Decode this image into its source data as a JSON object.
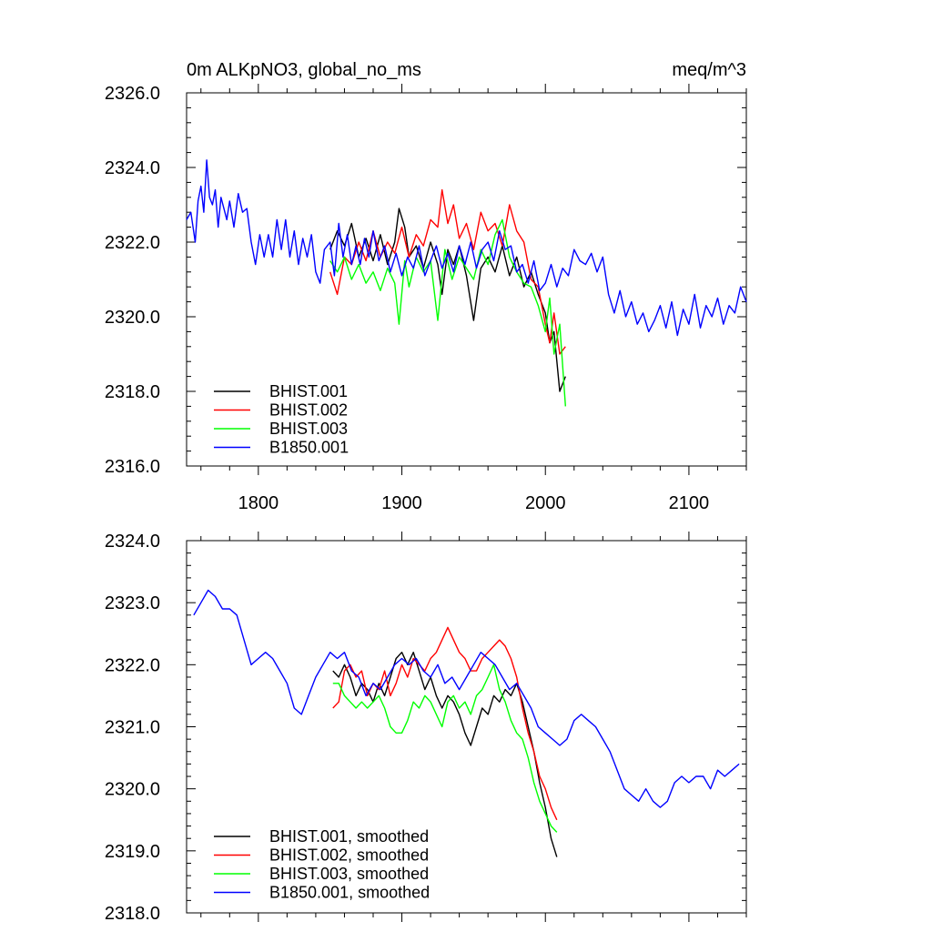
{
  "chart_data": [
    {
      "type": "line",
      "title_left": "0m ALKpNO3, global_no_ms",
      "title_right": "meq/m^3",
      "xlim": [
        1750,
        2140
      ],
      "ylim": [
        2316,
        2326
      ],
      "yticks": [
        2316.0,
        2318.0,
        2320.0,
        2322.0,
        2324.0,
        2326.0
      ],
      "ytick_labels": [
        "2316.0",
        "2318.0",
        "2320.0",
        "2322.0",
        "2324.0",
        "2326.0"
      ],
      "xticks": [
        1800,
        1900,
        2000,
        2100
      ],
      "xtick_labels": [
        "1800",
        "1900",
        "2000",
        "2100"
      ],
      "show_xtick_labels": true,
      "legend_position": "bottom-left",
      "series": [
        {
          "name": "BHIST.001",
          "color": "#000000",
          "x": [
            1850,
            1855,
            1860,
            1865,
            1870,
            1875,
            1880,
            1885,
            1890,
            1895,
            1898,
            1902,
            1905,
            1910,
            1915,
            1920,
            1925,
            1928,
            1932,
            1936,
            1940,
            1945,
            1950,
            1955,
            1960,
            1965,
            1970,
            1975,
            1980,
            1985,
            1990,
            1995,
            2000,
            2003,
            2006,
            2010,
            2014
          ],
          "y": [
            2321.8,
            2322.3,
            2321.9,
            2322.5,
            2321.6,
            2322.1,
            2321.5,
            2322.2,
            2321.4,
            2322.0,
            2322.9,
            2322.4,
            2321.6,
            2321.9,
            2321.3,
            2322.0,
            2321.4,
            2320.6,
            2321.8,
            2321.4,
            2321.9,
            2321.1,
            2319.9,
            2321.3,
            2321.6,
            2321.2,
            2321.9,
            2321.1,
            2321.6,
            2320.8,
            2321.2,
            2320.6,
            2320.1,
            2319.3,
            2319.6,
            2318.0,
            2318.4
          ]
        },
        {
          "name": "BHIST.002",
          "color": "#ff0000",
          "x": [
            1850,
            1855,
            1860,
            1865,
            1870,
            1875,
            1880,
            1885,
            1890,
            1895,
            1900,
            1905,
            1910,
            1915,
            1920,
            1925,
            1928,
            1932,
            1936,
            1940,
            1945,
            1950,
            1955,
            1960,
            1965,
            1970,
            1975,
            1980,
            1985,
            1990,
            1995,
            2000,
            2003,
            2006,
            2010,
            2014
          ],
          "y": [
            2321.2,
            2320.6,
            2321.6,
            2321.4,
            2322.0,
            2321.5,
            2322.3,
            2321.6,
            2322.0,
            2321.7,
            2322.4,
            2321.6,
            2322.2,
            2321.9,
            2322.6,
            2322.4,
            2323.4,
            2322.5,
            2323.0,
            2322.1,
            2322.5,
            2321.8,
            2322.8,
            2322.3,
            2322.5,
            2321.9,
            2323.0,
            2322.3,
            2322.0,
            2321.0,
            2320.8,
            2319.8,
            2319.3,
            2320.1,
            2319.0,
            2319.2
          ]
        },
        {
          "name": "BHIST.003",
          "color": "#00ff00",
          "x": [
            1850,
            1855,
            1860,
            1865,
            1870,
            1875,
            1880,
            1885,
            1890,
            1895,
            1898,
            1902,
            1905,
            1910,
            1915,
            1920,
            1925,
            1930,
            1935,
            1940,
            1945,
            1950,
            1955,
            1960,
            1965,
            1970,
            1975,
            1980,
            1985,
            1990,
            1995,
            2000,
            2003,
            2006,
            2010,
            2014
          ],
          "y": [
            2321.5,
            2321.2,
            2321.6,
            2321.0,
            2321.4,
            2320.9,
            2321.2,
            2320.7,
            2321.3,
            2320.9,
            2319.8,
            2321.5,
            2320.8,
            2321.6,
            2321.2,
            2321.5,
            2319.9,
            2321.8,
            2321.0,
            2321.6,
            2321.3,
            2321.0,
            2321.8,
            2321.4,
            2322.2,
            2322.6,
            2321.6,
            2321.2,
            2320.9,
            2320.8,
            2320.3,
            2319.6,
            2320.5,
            2319.0,
            2319.8,
            2317.6
          ]
        },
        {
          "name": "B1850.001",
          "color": "#0000ff",
          "x": [
            1750,
            1753,
            1756,
            1758,
            1760,
            1762,
            1764,
            1766,
            1768,
            1770,
            1772,
            1774,
            1776,
            1778,
            1780,
            1783,
            1786,
            1789,
            1792,
            1795,
            1798,
            1801,
            1804,
            1807,
            1810,
            1813,
            1816,
            1819,
            1822,
            1825,
            1828,
            1831,
            1834,
            1837,
            1840,
            1843,
            1846,
            1850,
            1853,
            1856,
            1859,
            1862,
            1865,
            1868,
            1871,
            1874,
            1877,
            1880,
            1884,
            1888,
            1892,
            1896,
            1900,
            1904,
            1908,
            1912,
            1916,
            1920,
            1924,
            1928,
            1932,
            1936,
            1940,
            1944,
            1948,
            1952,
            1956,
            1960,
            1964,
            1968,
            1972,
            1976,
            1980,
            1984,
            1988,
            1992,
            1996,
            2000,
            2004,
            2008,
            2012,
            2016,
            2020,
            2024,
            2028,
            2032,
            2036,
            2040,
            2044,
            2048,
            2052,
            2056,
            2060,
            2064,
            2068,
            2072,
            2076,
            2080,
            2084,
            2088,
            2092,
            2096,
            2100,
            2104,
            2108,
            2112,
            2116,
            2120,
            2124,
            2128,
            2132,
            2136,
            2140
          ],
          "y": [
            2322.6,
            2322.8,
            2322.0,
            2323.1,
            2323.5,
            2322.8,
            2324.2,
            2323.2,
            2323.0,
            2323.4,
            2322.4,
            2323.2,
            2322.9,
            2322.6,
            2323.1,
            2322.4,
            2323.3,
            2322.8,
            2322.9,
            2322.0,
            2321.4,
            2322.2,
            2321.6,
            2322.2,
            2321.6,
            2322.6,
            2321.8,
            2322.6,
            2321.6,
            2322.3,
            2321.4,
            2322.1,
            2321.6,
            2322.2,
            2321.2,
            2320.9,
            2321.8,
            2322.0,
            2321.1,
            2322.5,
            2321.6,
            2322.2,
            2321.4,
            2321.9,
            2321.4,
            2322.1,
            2321.6,
            2322.3,
            2321.5,
            2321.9,
            2321.2,
            2321.7,
            2321.1,
            2321.6,
            2321.3,
            2321.9,
            2321.1,
            2321.5,
            2321.9,
            2321.3,
            2321.7,
            2321.2,
            2321.9,
            2321.4,
            2322.0,
            2321.3,
            2321.8,
            2322.0,
            2321.5,
            2322.3,
            2321.8,
            2321.9,
            2321.2,
            2321.4,
            2320.9,
            2321.5,
            2320.7,
            2320.9,
            2321.4,
            2320.8,
            2321.3,
            2321.1,
            2321.8,
            2321.5,
            2321.4,
            2321.7,
            2321.2,
            2321.6,
            2320.6,
            2320.1,
            2320.7,
            2320.0,
            2320.4,
            2319.8,
            2320.1,
            2319.6,
            2319.9,
            2320.3,
            2319.7,
            2320.4,
            2319.5,
            2320.2,
            2319.8,
            2320.6,
            2319.7,
            2320.3,
            2320.0,
            2320.5,
            2319.8,
            2320.3,
            2320.1,
            2320.8,
            2320.4
          ]
        }
      ]
    },
    {
      "type": "line",
      "xlim": [
        1750,
        2140
      ],
      "ylim": [
        2318,
        2324
      ],
      "yticks": [
        2318.0,
        2319.0,
        2320.0,
        2321.0,
        2322.0,
        2323.0,
        2324.0
      ],
      "ytick_labels": [
        "2318.0",
        "2319.0",
        "2320.0",
        "2321.0",
        "2322.0",
        "2323.0",
        "2324.0"
      ],
      "xticks": [
        1800,
        1900,
        2000,
        2100
      ],
      "show_xtick_labels": false,
      "legend_position": "bottom-left",
      "series": [
        {
          "name": "BHIST.001, smoothed",
          "color": "#000000",
          "x": [
            1852,
            1856,
            1860,
            1864,
            1868,
            1872,
            1876,
            1880,
            1884,
            1888,
            1892,
            1896,
            1900,
            1904,
            1908,
            1912,
            1916,
            1920,
            1924,
            1928,
            1932,
            1936,
            1940,
            1944,
            1948,
            1952,
            1956,
            1960,
            1964,
            1968,
            1972,
            1976,
            1980,
            1984,
            1988,
            1992,
            1996,
            2000,
            2004,
            2008
          ],
          "y": [
            2321.9,
            2321.8,
            2322.0,
            2321.8,
            2321.5,
            2321.7,
            2321.6,
            2321.4,
            2321.7,
            2321.5,
            2321.8,
            2322.1,
            2322.2,
            2322.0,
            2322.2,
            2321.9,
            2321.6,
            2321.8,
            2321.5,
            2321.3,
            2321.5,
            2321.4,
            2321.2,
            2320.9,
            2320.7,
            2321.0,
            2321.3,
            2321.2,
            2321.5,
            2321.4,
            2321.6,
            2321.5,
            2321.7,
            2321.4,
            2321.0,
            2320.6,
            2320.1,
            2319.7,
            2319.2,
            2318.9
          ]
        },
        {
          "name": "BHIST.002, smoothed",
          "color": "#ff0000",
          "x": [
            1852,
            1856,
            1860,
            1864,
            1868,
            1872,
            1876,
            1880,
            1884,
            1888,
            1892,
            1896,
            1900,
            1904,
            1908,
            1912,
            1916,
            1920,
            1924,
            1928,
            1932,
            1936,
            1940,
            1944,
            1948,
            1952,
            1956,
            1960,
            1964,
            1968,
            1972,
            1976,
            1980,
            1984,
            1988,
            1992,
            1996,
            2000,
            2004,
            2008
          ],
          "y": [
            2321.3,
            2321.4,
            2321.9,
            2322.0,
            2321.8,
            2321.9,
            2321.5,
            2321.7,
            2321.6,
            2321.9,
            2321.5,
            2321.7,
            2322.0,
            2321.8,
            2322.1,
            2322.0,
            2321.9,
            2322.1,
            2322.2,
            2322.4,
            2322.6,
            2322.4,
            2322.2,
            2322.1,
            2321.9,
            2321.9,
            2322.1,
            2322.2,
            2322.3,
            2322.4,
            2322.3,
            2322.1,
            2321.8,
            2321.3,
            2320.9,
            2320.6,
            2320.2,
            2320.0,
            2319.7,
            2319.5
          ]
        },
        {
          "name": "BHIST.003, smoothed",
          "color": "#00ff00",
          "x": [
            1852,
            1856,
            1860,
            1864,
            1868,
            1872,
            1876,
            1880,
            1884,
            1888,
            1892,
            1896,
            1900,
            1904,
            1908,
            1912,
            1916,
            1920,
            1924,
            1928,
            1932,
            1936,
            1940,
            1944,
            1948,
            1952,
            1956,
            1960,
            1964,
            1968,
            1972,
            1976,
            1980,
            1984,
            1988,
            1992,
            1996,
            2000,
            2004,
            2008
          ],
          "y": [
            2321.7,
            2321.7,
            2321.5,
            2321.4,
            2321.3,
            2321.4,
            2321.3,
            2321.4,
            2321.5,
            2321.3,
            2321.0,
            2320.9,
            2320.9,
            2321.1,
            2321.4,
            2321.3,
            2321.5,
            2321.4,
            2321.2,
            2321.0,
            2321.4,
            2321.5,
            2321.3,
            2321.4,
            2321.2,
            2321.5,
            2321.6,
            2321.8,
            2322.0,
            2321.6,
            2321.4,
            2321.1,
            2320.9,
            2320.8,
            2320.5,
            2320.1,
            2319.8,
            2319.6,
            2319.4,
            2319.3
          ]
        },
        {
          "name": "B1850.001, smoothed",
          "color": "#0000ff",
          "x": [
            1755,
            1760,
            1765,
            1770,
            1775,
            1780,
            1785,
            1790,
            1795,
            1800,
            1805,
            1810,
            1815,
            1820,
            1825,
            1830,
            1835,
            1840,
            1845,
            1850,
            1855,
            1860,
            1865,
            1870,
            1875,
            1880,
            1885,
            1890,
            1895,
            1900,
            1905,
            1910,
            1915,
            1920,
            1925,
            1930,
            1935,
            1940,
            1945,
            1950,
            1955,
            1960,
            1965,
            1970,
            1975,
            1980,
            1985,
            1990,
            1995,
            2000,
            2005,
            2010,
            2015,
            2020,
            2025,
            2030,
            2035,
            2040,
            2045,
            2050,
            2055,
            2060,
            2065,
            2070,
            2075,
            2080,
            2085,
            2090,
            2095,
            2100,
            2105,
            2110,
            2115,
            2120,
            2125,
            2130,
            2135
          ],
          "y": [
            2322.8,
            2323.0,
            2323.2,
            2323.1,
            2322.9,
            2322.9,
            2322.8,
            2322.4,
            2322.0,
            2322.1,
            2322.2,
            2322.1,
            2321.9,
            2321.7,
            2321.3,
            2321.2,
            2321.5,
            2321.8,
            2322.0,
            2322.2,
            2322.1,
            2322.2,
            2321.9,
            2321.8,
            2321.5,
            2321.7,
            2321.6,
            2321.8,
            2322.0,
            2322.1,
            2322.0,
            2322.1,
            2321.9,
            2321.8,
            2322.0,
            2321.7,
            2321.8,
            2321.6,
            2321.8,
            2322.0,
            2322.2,
            2322.1,
            2322.0,
            2321.8,
            2321.6,
            2321.7,
            2321.5,
            2321.3,
            2321.0,
            2320.9,
            2320.8,
            2320.7,
            2320.8,
            2321.1,
            2321.2,
            2321.1,
            2321.0,
            2320.8,
            2320.6,
            2320.3,
            2320.0,
            2319.9,
            2319.8,
            2320.0,
            2319.8,
            2319.7,
            2319.8,
            2320.1,
            2320.2,
            2320.1,
            2320.2,
            2320.2,
            2320.0,
            2320.3,
            2320.2,
            2320.3,
            2320.4
          ]
        }
      ]
    }
  ]
}
